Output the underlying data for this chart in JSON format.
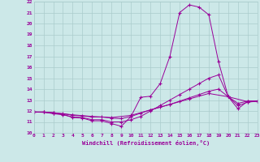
{
  "xlabel": "Windchill (Refroidissement éolien,°C)",
  "bg_color": "#cce8e8",
  "grid_color": "#aacccc",
  "line_color": "#990099",
  "xmin": 0,
  "xmax": 23,
  "ymin": 10,
  "ymax": 22,
  "series": [
    [
      0,
      11.9,
      1,
      11.9,
      2,
      11.85,
      3,
      11.7,
      4,
      11.4,
      5,
      11.35,
      6,
      11.1,
      7,
      11.1,
      8,
      10.85,
      9,
      10.6,
      10,
      11.5,
      11,
      13.25,
      12,
      13.35,
      13,
      14.5,
      14,
      17.0,
      15,
      21.0,
      16,
      21.7,
      17,
      21.5,
      18,
      20.8,
      19,
      16.5,
      20,
      13.3,
      21,
      12.2,
      22,
      12.9,
      23,
      12.9
    ],
    [
      0,
      11.9,
      1,
      11.9,
      2,
      11.75,
      3,
      11.65,
      4,
      11.45,
      5,
      11.4,
      6,
      11.2,
      7,
      11.2,
      8,
      11.0,
      9,
      11.0,
      10,
      11.2,
      11,
      11.5,
      12,
      12.0,
      13,
      12.5,
      14,
      13.0,
      15,
      13.5,
      16,
      14.0,
      17,
      14.5,
      18,
      15.0,
      19,
      15.3,
      20,
      13.3,
      21,
      12.5,
      22,
      12.8,
      23,
      12.9
    ],
    [
      0,
      11.9,
      1,
      11.9,
      2,
      11.8,
      3,
      11.75,
      4,
      11.6,
      5,
      11.55,
      6,
      11.45,
      7,
      11.45,
      8,
      11.35,
      9,
      11.3,
      10,
      11.5,
      11,
      11.8,
      12,
      12.1,
      13,
      12.35,
      14,
      12.6,
      15,
      12.9,
      16,
      13.2,
      17,
      13.5,
      18,
      13.8,
      19,
      14.0,
      20,
      13.3,
      21,
      12.7,
      22,
      12.9,
      23,
      12.9
    ],
    [
      0,
      11.9,
      2,
      11.85,
      4,
      11.65,
      6,
      11.5,
      8,
      11.4,
      10,
      11.6,
      12,
      12.1,
      14,
      12.6,
      16,
      13.1,
      18,
      13.6,
      20,
      13.3,
      22,
      12.85,
      23,
      12.9
    ]
  ]
}
